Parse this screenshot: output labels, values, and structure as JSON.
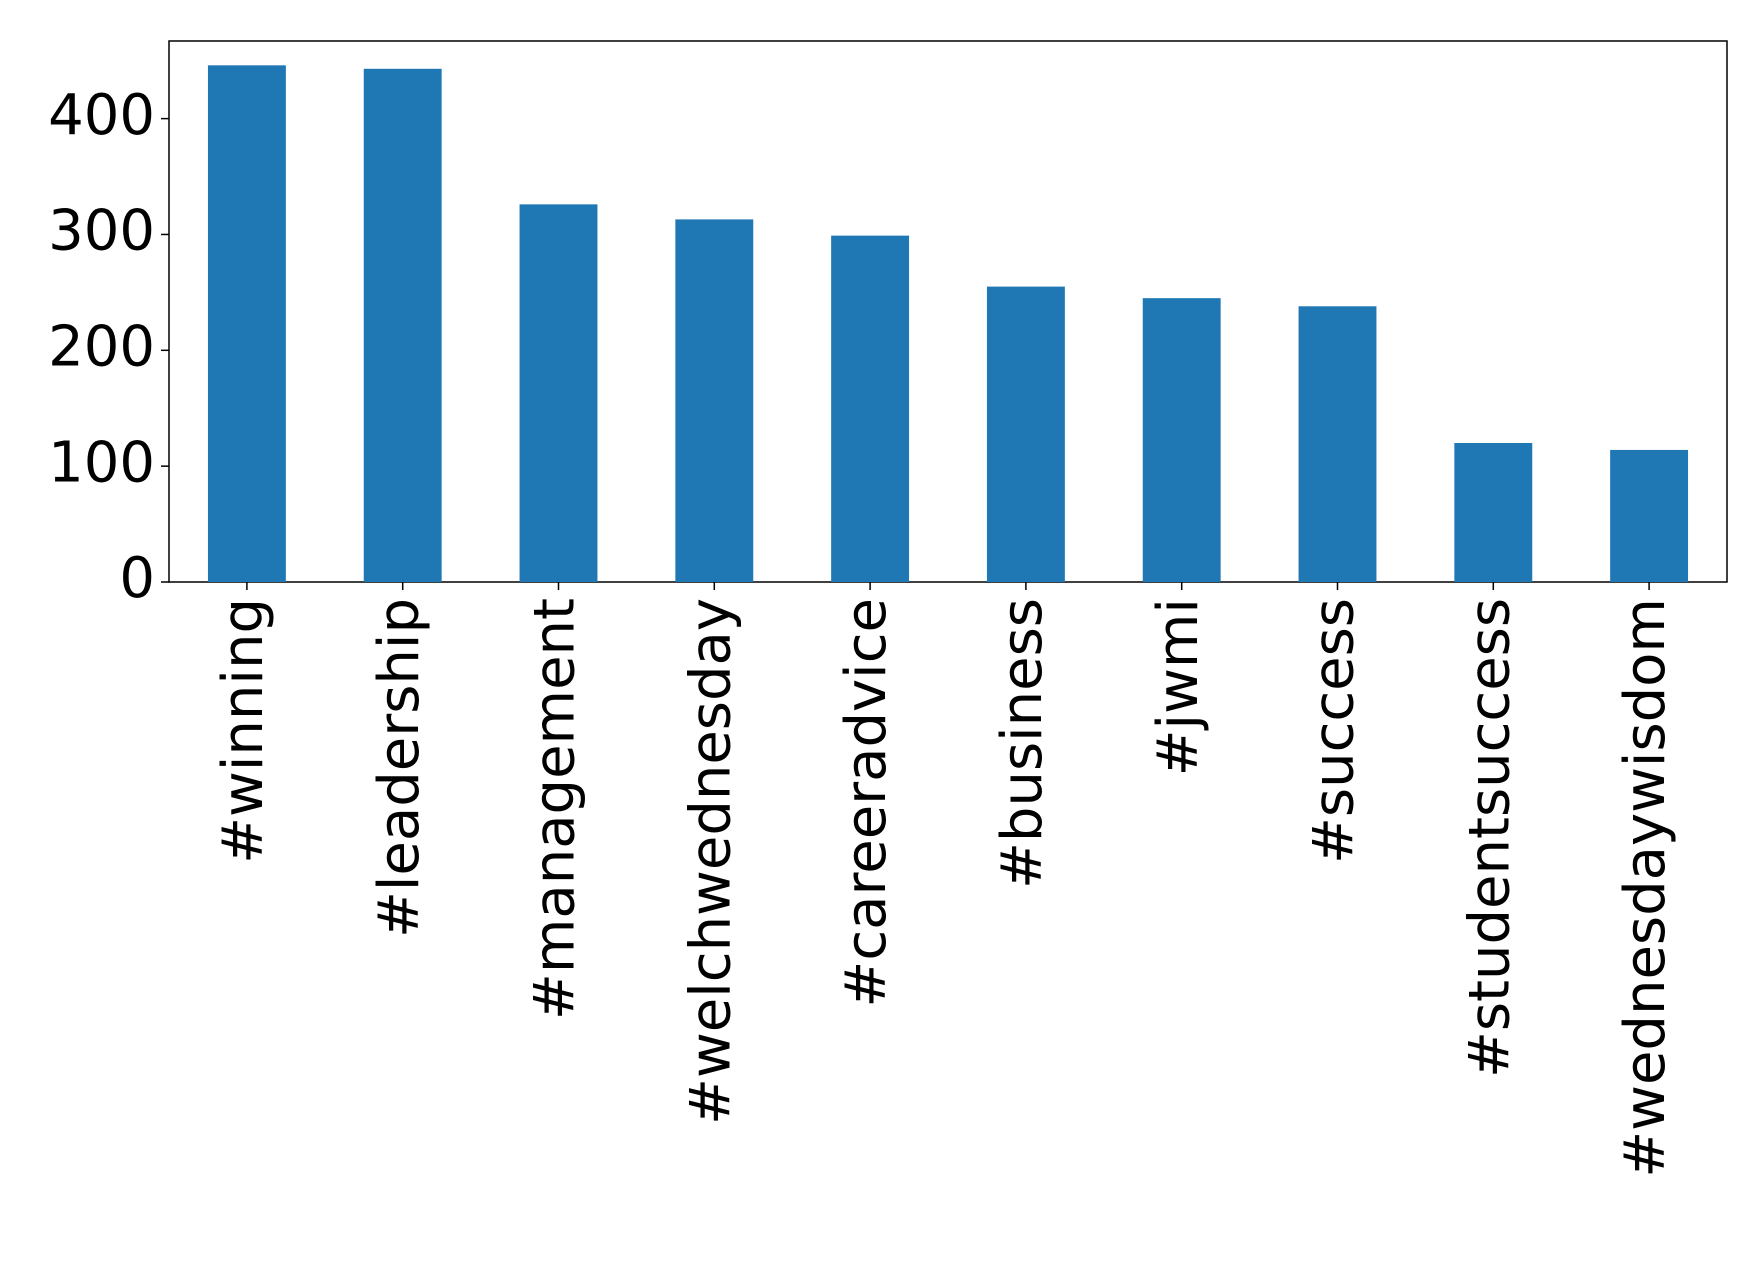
{
  "chart_data": {
    "type": "bar",
    "categories": [
      "#winning",
      "#leadership",
      "#management",
      "#welchwednesday",
      "#careeradvice",
      "#business",
      "#jwmi",
      "#success",
      "#studentsuccess",
      "#wednesdaywisdom"
    ],
    "values": [
      446,
      443,
      326,
      313,
      299,
      255,
      245,
      238,
      120,
      114
    ],
    "color": "#1f77b4",
    "ylim": [
      0,
      467
    ],
    "yticks": [
      0,
      100,
      200,
      300,
      400
    ],
    "grid": false
  }
}
